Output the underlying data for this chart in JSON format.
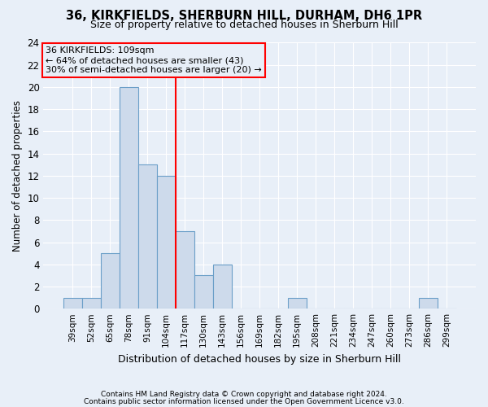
{
  "title1": "36, KIRKFIELDS, SHERBURN HILL, DURHAM, DH6 1PR",
  "title2": "Size of property relative to detached houses in Sherburn Hill",
  "xlabel": "Distribution of detached houses by size in Sherburn Hill",
  "ylabel": "Number of detached properties",
  "footnote1": "Contains HM Land Registry data © Crown copyright and database right 2024.",
  "footnote2": "Contains public sector information licensed under the Open Government Licence v3.0.",
  "bin_labels": [
    "39sqm",
    "52sqm",
    "65sqm",
    "78sqm",
    "91sqm",
    "104sqm",
    "117sqm",
    "130sqm",
    "143sqm",
    "156sqm",
    "169sqm",
    "182sqm",
    "195sqm",
    "208sqm",
    "221sqm",
    "234sqm",
    "247sqm",
    "260sqm",
    "273sqm",
    "286sqm",
    "299sqm"
  ],
  "bin_counts": [
    1,
    1,
    5,
    20,
    13,
    12,
    7,
    3,
    4,
    0,
    0,
    0,
    1,
    0,
    0,
    0,
    0,
    0,
    0,
    1,
    0
  ],
  "bar_color": "#cddaeb",
  "bar_edge_color": "#6b9fc8",
  "vline_x": 5.5,
  "vline_color": "red",
  "ylim": [
    0,
    24
  ],
  "yticks": [
    0,
    2,
    4,
    6,
    8,
    10,
    12,
    14,
    16,
    18,
    20,
    22,
    24
  ],
  "annotation_text": "36 KIRKFIELDS: 109sqm\n← 64% of detached houses are smaller (43)\n30% of semi-detached houses are larger (20) →",
  "annotation_box_color": "red",
  "background_color": "#e8eff8",
  "grid_color": "#ffffff",
  "title1_fontsize": 10.5,
  "title2_fontsize": 9,
  "xlabel_fontsize": 9,
  "ylabel_fontsize": 8.5,
  "footnote_fontsize": 6.5,
  "annotation_fontsize": 8
}
